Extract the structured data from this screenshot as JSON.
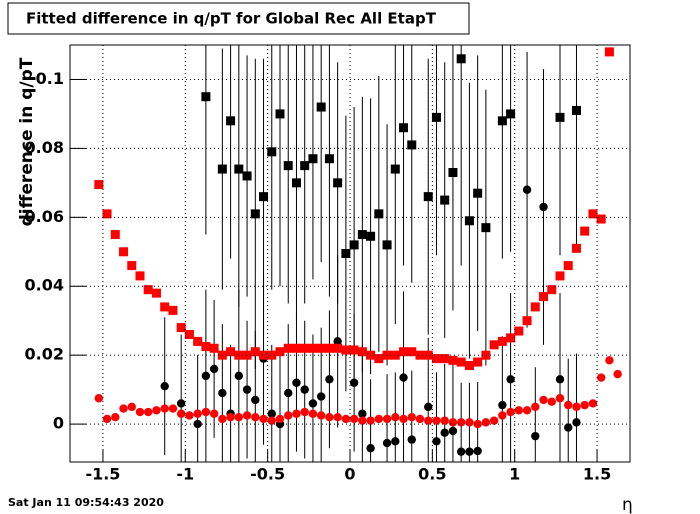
{
  "chart_data": {
    "type": "scatter",
    "title": "Fitted difference in q/pT for Global Rec All EtapT",
    "ylabel": "difference in q/pT",
    "xlabel": "η",
    "timestamp": "Sat Jan 11 09:54:43 2020",
    "grid": true,
    "xlim": [
      -1.7,
      1.7
    ],
    "ylim": [
      -0.011,
      0.11
    ],
    "xticks": [
      -1.5,
      -1,
      -0.5,
      0,
      0.5,
      1,
      1.5
    ],
    "yticks": [
      0,
      0.02,
      0.04,
      0.06,
      0.08,
      0.1
    ],
    "x": [
      -1.525,
      -1.475,
      -1.425,
      -1.375,
      -1.325,
      -1.275,
      -1.225,
      -1.175,
      -1.125,
      -1.075,
      -1.025,
      -0.975,
      -0.925,
      -0.875,
      -0.825,
      -0.775,
      -0.725,
      -0.675,
      -0.625,
      -0.575,
      -0.525,
      -0.475,
      -0.425,
      -0.375,
      -0.325,
      -0.275,
      -0.225,
      -0.175,
      -0.125,
      -0.075,
      -0.025,
      0.025,
      0.075,
      0.125,
      0.175,
      0.225,
      0.275,
      0.325,
      0.375,
      0.425,
      0.475,
      0.525,
      0.575,
      0.625,
      0.675,
      0.725,
      0.775,
      0.825,
      0.875,
      0.925,
      0.975,
      1.025,
      1.075,
      1.125,
      1.175,
      1.225,
      1.275,
      1.325,
      1.375,
      1.425,
      1.475,
      1.525,
      1.575,
      1.625
    ],
    "series": [
      {
        "color": "#000000",
        "marker": "square",
        "values": [
          null,
          null,
          null,
          null,
          null,
          null,
          null,
          null,
          null,
          null,
          null,
          null,
          null,
          0.095,
          null,
          0.074,
          0.088,
          0.074,
          0.072,
          0.061,
          0.066,
          0.079,
          0.09,
          0.075,
          0.07,
          0.075,
          0.077,
          0.092,
          0.077,
          0.07,
          0.0495,
          0.052,
          0.055,
          0.0545,
          0.061,
          0.052,
          0.074,
          0.086,
          0.081,
          null,
          0.066,
          0.089,
          0.065,
          0.073,
          0.106,
          0.059,
          0.067,
          0.057,
          null,
          0.088,
          0.09,
          null,
          null,
          null,
          null,
          null,
          0.089,
          null,
          0.091,
          null,
          null,
          null,
          null,
          null
        ],
        "errors": [
          null,
          null,
          null,
          null,
          null,
          null,
          null,
          null,
          null,
          null,
          null,
          null,
          null,
          0.04,
          null,
          0.035,
          0.04,
          0.04,
          0.035,
          0.045,
          0.04,
          0.04,
          0.05,
          0.04,
          0.04,
          0.04,
          0.035,
          0.045,
          0.04,
          0.035,
          0.04,
          0.04,
          0.04,
          0.04,
          0.04,
          0.035,
          0.045,
          0.04,
          0.04,
          null,
          0.04,
          0.04,
          0.04,
          0.04,
          0.06,
          0.04,
          0.04,
          0.04,
          null,
          0.04,
          0.04,
          null,
          null,
          null,
          null,
          null,
          0.04,
          null,
          0.04,
          null,
          null,
          null,
          null,
          null
        ]
      },
      {
        "color": "#000000",
        "marker": "circle",
        "values": [
          null,
          null,
          null,
          null,
          null,
          null,
          null,
          null,
          0.011,
          null,
          0.006,
          null,
          0.0,
          0.014,
          0.016,
          0.009,
          0.003,
          0.014,
          0.01,
          0.007,
          0.019,
          0.003,
          0.0,
          0.009,
          0.012,
          0.01,
          0.006,
          0.008,
          0.013,
          0.024,
          null,
          0.012,
          0.003,
          -0.007,
          null,
          -0.0055,
          -0.005,
          0.0135,
          -0.0045,
          null,
          0.005,
          -0.005,
          -0.0025,
          -0.002,
          -0.008,
          -0.008,
          -0.0078,
          null,
          null,
          0.0055,
          0.013,
          null,
          0.068,
          -0.0035,
          0.063,
          null,
          0.013,
          -0.001,
          0.0005,
          null,
          null,
          null,
          null,
          null
        ],
        "errors": [
          null,
          null,
          null,
          null,
          null,
          null,
          null,
          null,
          0.02,
          null,
          0.02,
          null,
          0.02,
          0.025,
          0.02,
          0.02,
          0.02,
          0.025,
          0.02,
          0.02,
          0.025,
          0.02,
          0.02,
          0.02,
          0.02,
          0.02,
          0.02,
          0.02,
          0.02,
          0.025,
          null,
          0.02,
          0.02,
          0.02,
          null,
          0.02,
          0.02,
          0.025,
          0.02,
          null,
          0.02,
          0.02,
          0.02,
          0.02,
          0.02,
          0.02,
          0.02,
          null,
          null,
          0.02,
          0.025,
          null,
          0.04,
          0.02,
          0.04,
          null,
          0.025,
          0.02,
          0.02,
          null,
          null,
          null,
          null,
          null
        ]
      },
      {
        "color": "#ff0000",
        "marker": "square",
        "values": [
          0.0695,
          0.061,
          0.055,
          0.05,
          0.046,
          0.043,
          0.039,
          0.038,
          0.034,
          0.033,
          0.028,
          0.026,
          0.024,
          0.0225,
          0.022,
          0.02,
          0.021,
          0.02,
          0.02,
          0.021,
          0.02,
          0.02,
          0.021,
          0.022,
          0.022,
          0.022,
          0.022,
          0.022,
          0.022,
          0.022,
          0.0215,
          0.0215,
          0.021,
          0.02,
          0.019,
          0.02,
          0.02,
          0.021,
          0.021,
          0.02,
          0.02,
          0.019,
          0.019,
          0.0185,
          0.018,
          0.017,
          0.018,
          0.02,
          0.023,
          0.024,
          0.025,
          0.027,
          0.03,
          0.034,
          0.037,
          0.039,
          0.043,
          0.046,
          0.051,
          0.056,
          0.061,
          0.0595,
          0.108,
          null
        ]
      },
      {
        "color": "#ff0000",
        "marker": "circle",
        "values": [
          0.0075,
          0.0015,
          0.002,
          0.0045,
          0.005,
          0.0035,
          0.0035,
          0.004,
          0.0045,
          0.0045,
          0.003,
          0.0025,
          0.003,
          0.0035,
          0.003,
          0.0015,
          0.002,
          0.002,
          0.0025,
          0.002,
          0.0015,
          0.001,
          0.0015,
          0.0025,
          0.003,
          0.0035,
          0.003,
          0.0025,
          0.002,
          0.002,
          0.0015,
          0.0015,
          0.001,
          0.001,
          0.0015,
          0.0015,
          0.002,
          0.0015,
          0.002,
          0.0015,
          0.001,
          0.001,
          0.001,
          0.0005,
          0.0005,
          0.0005,
          0.0,
          0.0005,
          0.001,
          0.0025,
          0.0035,
          0.004,
          0.004,
          0.005,
          0.007,
          0.0065,
          0.0075,
          0.0055,
          0.005,
          0.0055,
          0.006,
          0.0135,
          0.0185,
          0.0145
        ]
      }
    ]
  }
}
